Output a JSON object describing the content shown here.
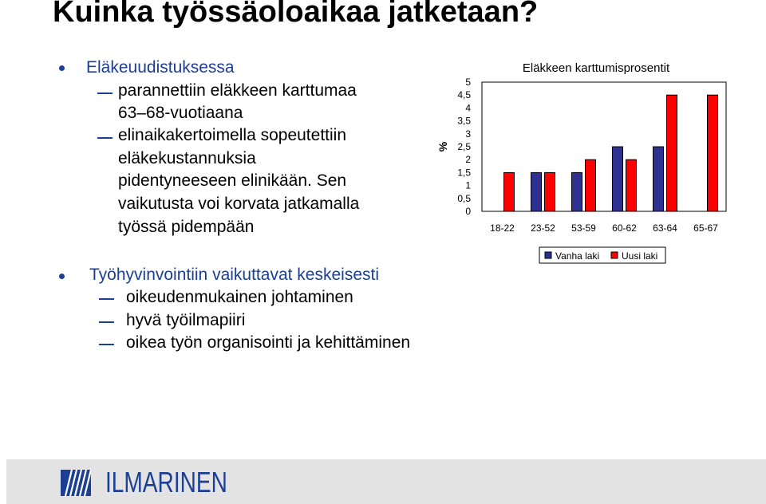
{
  "page": {
    "title": "Kuinka työssäoloaikaa jatketaan?"
  },
  "bullets": [
    {
      "text": "Eläkeuudistuksessa",
      "subs": [
        "parannettiin eläkkeen karttumaa",
        "63–68-vuotiaana",
        "elinaikakertoimella sopeutettiin",
        "eläkekustannuksia",
        "pidentyneeseen elinikään. Sen",
        "vaikutusta voi korvata jatkamalla",
        "työssä pidempään"
      ]
    },
    {
      "text": "Työhyvinvointiin vaikuttavat keskeisesti",
      "subs": [
        "oikeudenmukainen johtaminen",
        "hyvä työilmapiiri",
        "oikea työn organisointi ja kehittäminen"
      ]
    }
  ],
  "chart_data": {
    "type": "bar",
    "title": "Eläkkeen karttumisprosentit",
    "ylabel": "%",
    "xlabel": "",
    "categories": [
      "18-22",
      "23-52",
      "53-59",
      "60-62",
      "63-64",
      "65-67"
    ],
    "series": [
      {
        "name": "Vanha laki",
        "color": "#2e3192",
        "values": [
          null,
          1.5,
          1.5,
          2.5,
          2.5,
          null
        ]
      },
      {
        "name": "Uusi laki",
        "color": "#ff0000",
        "values": [
          1.5,
          1.5,
          2.0,
          2.0,
          4.5,
          4.5
        ]
      }
    ],
    "ylim": [
      0,
      5
    ],
    "yticks": [
      "0",
      "0,5",
      "1",
      "1,5",
      "2",
      "2,5",
      "3",
      "3,5",
      "4",
      "4,5",
      "5"
    ],
    "grid": false,
    "legend": "bottom"
  },
  "footer": {
    "logo_text": "ILMARINEN",
    "background": "#e3e3e3",
    "accent": "#1c3f94"
  }
}
